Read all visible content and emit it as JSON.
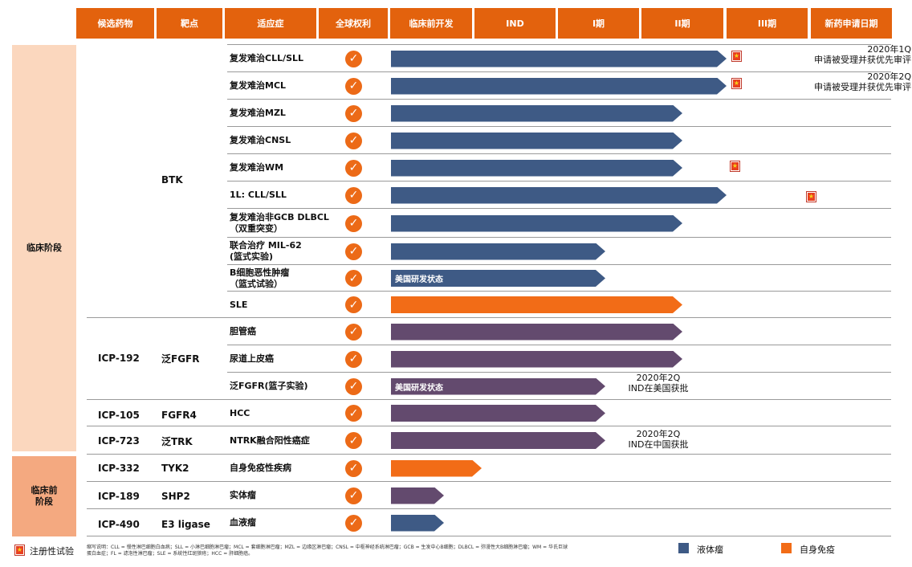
{
  "headers": [
    "候选药物",
    "靶点",
    "适应症",
    "全球权利",
    "临床前开发",
    "IND",
    "I期",
    "II期",
    "III期",
    "新药申请日期"
  ],
  "phases": [
    {
      "label": "临床阶段",
      "color": "#fbd7be"
    },
    {
      "label": "临床前\n阶段",
      "color": "#f4a980"
    }
  ],
  "drugs": [
    "BTK",
    "ICP-192",
    "ICP-105",
    "ICP-723",
    "ICP-332",
    "ICP-189",
    "ICP-490"
  ],
  "targets": [
    "泛FGFR",
    "FGFR4",
    "泛TRK",
    "TYK2",
    "SHP2",
    "E3 ligase"
  ],
  "check_glyph": "✓",
  "rows": [
    {
      "indication": "复发难治CLL/SLL",
      "stage": "III期",
      "color": "liquid"
    },
    {
      "indication": "复发难治MCL",
      "stage": "III期",
      "color": "liquid"
    },
    {
      "indication": "复发难治MZL",
      "stage": "II期",
      "color": "liquid"
    },
    {
      "indication": "复发难治CNSL",
      "stage": "II期",
      "color": "liquid"
    },
    {
      "indication": "复发难治WM",
      "stage": "II期",
      "color": "liquid"
    },
    {
      "indication": "1L: CLL/SLL",
      "stage": "III期",
      "color": "liquid"
    },
    {
      "indication": "复发难治非GCB DLBCL\n（双重突变）",
      "stage": "II期",
      "color": "liquid"
    },
    {
      "indication": "联合治疗 MIL-62\n(篮式实验)",
      "stage": "I期",
      "color": "liquid"
    },
    {
      "indication": "B细胞恶性肿瘤\n（篮式试验）",
      "stage": "I期",
      "color": "liquid",
      "bar_label": "美国研发状态"
    },
    {
      "indication": "SLE",
      "stage": "II期",
      "color": "autoimmune"
    },
    {
      "indication": "胆管癌",
      "stage": "II期",
      "color": "solid"
    },
    {
      "indication": "尿道上皮癌",
      "stage": "II期",
      "color": "solid"
    },
    {
      "indication": "泛FGFR(篮子实验)",
      "stage": "I期",
      "color": "solid",
      "bar_label": "美国研发状态"
    },
    {
      "indication": "HCC",
      "stage": "I期",
      "color": "solid"
    },
    {
      "indication": "NTRK融合阳性癌症",
      "stage": "I期",
      "color": "solid"
    },
    {
      "indication": "自身免疫性疾病",
      "stage": "IND",
      "color": "autoimmune"
    },
    {
      "indication": "实体瘤",
      "stage": "临床前开发",
      "color": "solid"
    },
    {
      "indication": "血液瘤",
      "stage": "临床前开发",
      "color": "liquid"
    }
  ],
  "annotations": [
    {
      "text": "2020年1Q\n申请被受理并获优先审评"
    },
    {
      "text": "2020年2Q\n申请被受理并获优先审评"
    },
    {
      "text": "2020年2Q\nIND在美国获批"
    },
    {
      "text": "2020年2Q\nIND在中国获批"
    }
  ],
  "colors": {
    "liquid": "#3e5a85",
    "solid": "#634a6e",
    "autoimmune": "#f26c17",
    "header": "#e3620d",
    "check": "#ec6a17"
  },
  "footer": {
    "registration_label": "注册性试验",
    "abbreviations": "缩写说明：CLL = 慢性淋巴细胞白血病；SLL = 小淋巴细胞淋巴瘤；MCL = 套细胞淋巴瘤；MZL = 边缘区淋巴瘤；CNSL = 中枢神经系统淋巴瘤；GCB = 生发中心B细胞；DLBCL = 弥漫性大B细胞淋巴瘤；WM = 华氏巨球蛋白血症；FL = 滤泡性淋巴瘤；SLE = 系统性红斑狼疮；HCC = 肝细胞癌。",
    "legend_liquid": "液体瘤",
    "legend_autoimmune": "自身免疫"
  },
  "chart_data": {
    "type": "gantt",
    "stages": [
      "临床前开发",
      "IND",
      "I期",
      "II期",
      "III期",
      "新药申请日期"
    ],
    "series": [
      {
        "name": "液体瘤",
        "color": "#3e5a85"
      },
      {
        "name": "自身免疫",
        "color": "#f26c17"
      }
    ],
    "programs": [
      {
        "drug": "BTK",
        "indication": "复发难治CLL/SLL",
        "stage": "III期",
        "registration_trial": true,
        "note": "2020年1Q 申请被受理并获优先审评"
      },
      {
        "drug": "BTK",
        "indication": "复发难治MCL",
        "stage": "III期",
        "registration_trial": true,
        "note": "2020年2Q 申请被受理并获优先审评"
      },
      {
        "drug": "BTK",
        "indication": "复发难治MZL",
        "stage": "II期"
      },
      {
        "drug": "BTK",
        "indication": "复发难治CNSL",
        "stage": "II期"
      },
      {
        "drug": "BTK",
        "indication": "复发难治WM",
        "stage": "II期",
        "registration_trial": true
      },
      {
        "drug": "BTK",
        "indication": "1L: CLL/SLL",
        "stage": "III期",
        "registration_trial": true
      },
      {
        "drug": "BTK",
        "indication": "复发难治非GCB DLBCL（双重突变）",
        "stage": "II期"
      },
      {
        "drug": "BTK",
        "indication": "联合治疗 MIL-62 (篮式实验)",
        "stage": "I期"
      },
      {
        "drug": "BTK",
        "indication": "B细胞恶性肿瘤（篮式试验）",
        "stage": "I期",
        "label": "美国研发状态"
      },
      {
        "drug": "BTK",
        "indication": "SLE",
        "stage": "II期"
      },
      {
        "drug": "ICP-192",
        "target": "泛FGFR",
        "indication": "胆管癌",
        "stage": "II期"
      },
      {
        "drug": "ICP-192",
        "target": "泛FGFR",
        "indication": "尿道上皮癌",
        "stage": "II期"
      },
      {
        "drug": "ICP-192",
        "target": "泛FGFR",
        "indication": "泛FGFR(篮子实验)",
        "stage": "I期",
        "label": "美国研发状态",
        "note": "2020年2Q IND在美国获批"
      },
      {
        "drug": "ICP-105",
        "target": "FGFR4",
        "indication": "HCC",
        "stage": "I期"
      },
      {
        "drug": "ICP-723",
        "target": "泛TRK",
        "indication": "NTRK融合阳性癌症",
        "stage": "I期",
        "note": "2020年2Q IND在中国获批"
      },
      {
        "drug": "ICP-332",
        "target": "TYK2",
        "indication": "自身免疫性疾病",
        "stage": "IND"
      },
      {
        "drug": "ICP-189",
        "target": "SHP2",
        "indication": "实体瘤",
        "stage": "临床前开发"
      },
      {
        "drug": "ICP-490",
        "target": "E3 ligase",
        "indication": "血液瘤",
        "stage": "临床前开发"
      }
    ]
  }
}
